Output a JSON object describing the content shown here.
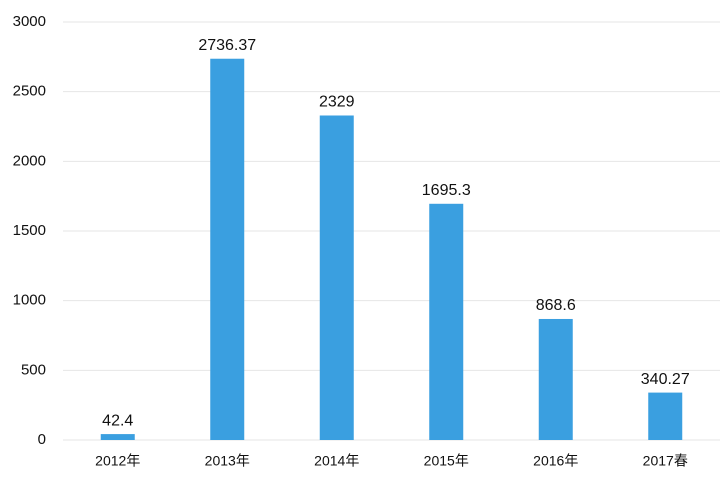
{
  "chart_data": {
    "type": "bar",
    "categories": [
      "2012年",
      "2013年",
      "2014年",
      "2015年",
      "2016年",
      "2017春"
    ],
    "values": [
      42.4,
      2736.37,
      2329,
      1695.3,
      868.6,
      340.27
    ],
    "color": "#3a9fe0",
    "ylim": [
      0,
      3000
    ],
    "yticks": [
      0,
      500,
      1000,
      1500,
      2000,
      2500,
      3000
    ],
    "grid": true
  }
}
